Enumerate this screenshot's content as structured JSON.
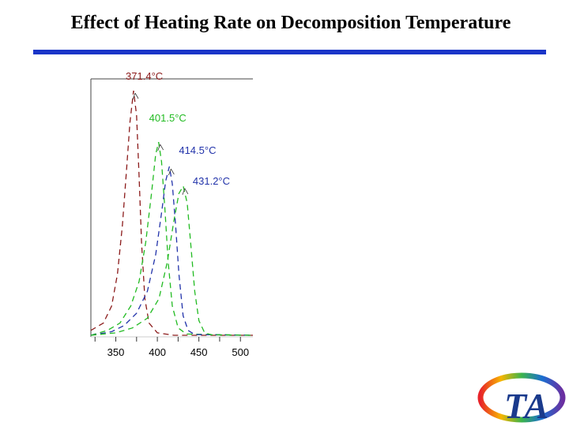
{
  "slide": {
    "title": "Effect of Heating Rate on Decomposition Temperature",
    "accent_color": "#1a35c8"
  },
  "chart_data": {
    "type": "line",
    "title": "",
    "xlabel": "",
    "ylabel": "",
    "x_ticks": [
      350,
      400,
      450,
      500
    ],
    "xlim": [
      320,
      515
    ],
    "grid": false,
    "line_style": "dashed",
    "series": [
      {
        "color": "#8b1a1a",
        "peak_x": 371.4,
        "peak_label": "371.4°C",
        "label_color": "#8b1a1a",
        "points": [
          [
            320,
            0.02
          ],
          [
            335,
            0.05
          ],
          [
            345,
            0.12
          ],
          [
            352,
            0.25
          ],
          [
            358,
            0.45
          ],
          [
            363,
            0.68
          ],
          [
            367,
            0.87
          ],
          [
            371.4,
            1.0
          ],
          [
            375,
            0.9
          ],
          [
            378,
            0.65
          ],
          [
            381,
            0.38
          ],
          [
            385,
            0.15
          ],
          [
            390,
            0.05
          ],
          [
            400,
            0.01
          ],
          [
            420,
            0.0
          ],
          [
            515,
            0.0
          ]
        ]
      },
      {
        "color": "#22bb22",
        "peak_x": 401.5,
        "peak_label": "401.5°C",
        "label_color": "#22bb22",
        "points": [
          [
            320,
            0.0
          ],
          [
            340,
            0.02
          ],
          [
            355,
            0.05
          ],
          [
            368,
            0.12
          ],
          [
            378,
            0.22
          ],
          [
            386,
            0.38
          ],
          [
            393,
            0.58
          ],
          [
            398,
            0.74
          ],
          [
            401.5,
            0.79
          ],
          [
            405,
            0.71
          ],
          [
            409,
            0.52
          ],
          [
            413,
            0.3
          ],
          [
            418,
            0.12
          ],
          [
            425,
            0.03
          ],
          [
            435,
            0.005
          ],
          [
            515,
            0.0
          ]
        ]
      },
      {
        "color": "#2233aa",
        "peak_x": 414.5,
        "peak_label": "414.5°C",
        "label_color": "#2233aa",
        "points": [
          [
            320,
            0.0
          ],
          [
            345,
            0.015
          ],
          [
            360,
            0.04
          ],
          [
            375,
            0.09
          ],
          [
            388,
            0.18
          ],
          [
            398,
            0.33
          ],
          [
            405,
            0.5
          ],
          [
            410,
            0.63
          ],
          [
            414.5,
            0.69
          ],
          [
            418,
            0.62
          ],
          [
            422,
            0.45
          ],
          [
            426,
            0.25
          ],
          [
            431,
            0.08
          ],
          [
            437,
            0.02
          ],
          [
            445,
            0.003
          ],
          [
            515,
            0.0
          ]
        ]
      },
      {
        "color": "#22bb22",
        "peak_x": 431.2,
        "peak_label": "431.2°C",
        "label_color": "#2233aa",
        "points": [
          [
            320,
            0.0
          ],
          [
            350,
            0.01
          ],
          [
            370,
            0.03
          ],
          [
            388,
            0.07
          ],
          [
            402,
            0.15
          ],
          [
            412,
            0.3
          ],
          [
            420,
            0.47
          ],
          [
            426,
            0.58
          ],
          [
            431.2,
            0.61
          ],
          [
            436,
            0.54
          ],
          [
            440,
            0.38
          ],
          [
            445,
            0.18
          ],
          [
            450,
            0.06
          ],
          [
            457,
            0.01
          ],
          [
            465,
            0.002
          ],
          [
            515,
            0.0
          ]
        ]
      }
    ]
  },
  "logo": {
    "text": "TA"
  }
}
